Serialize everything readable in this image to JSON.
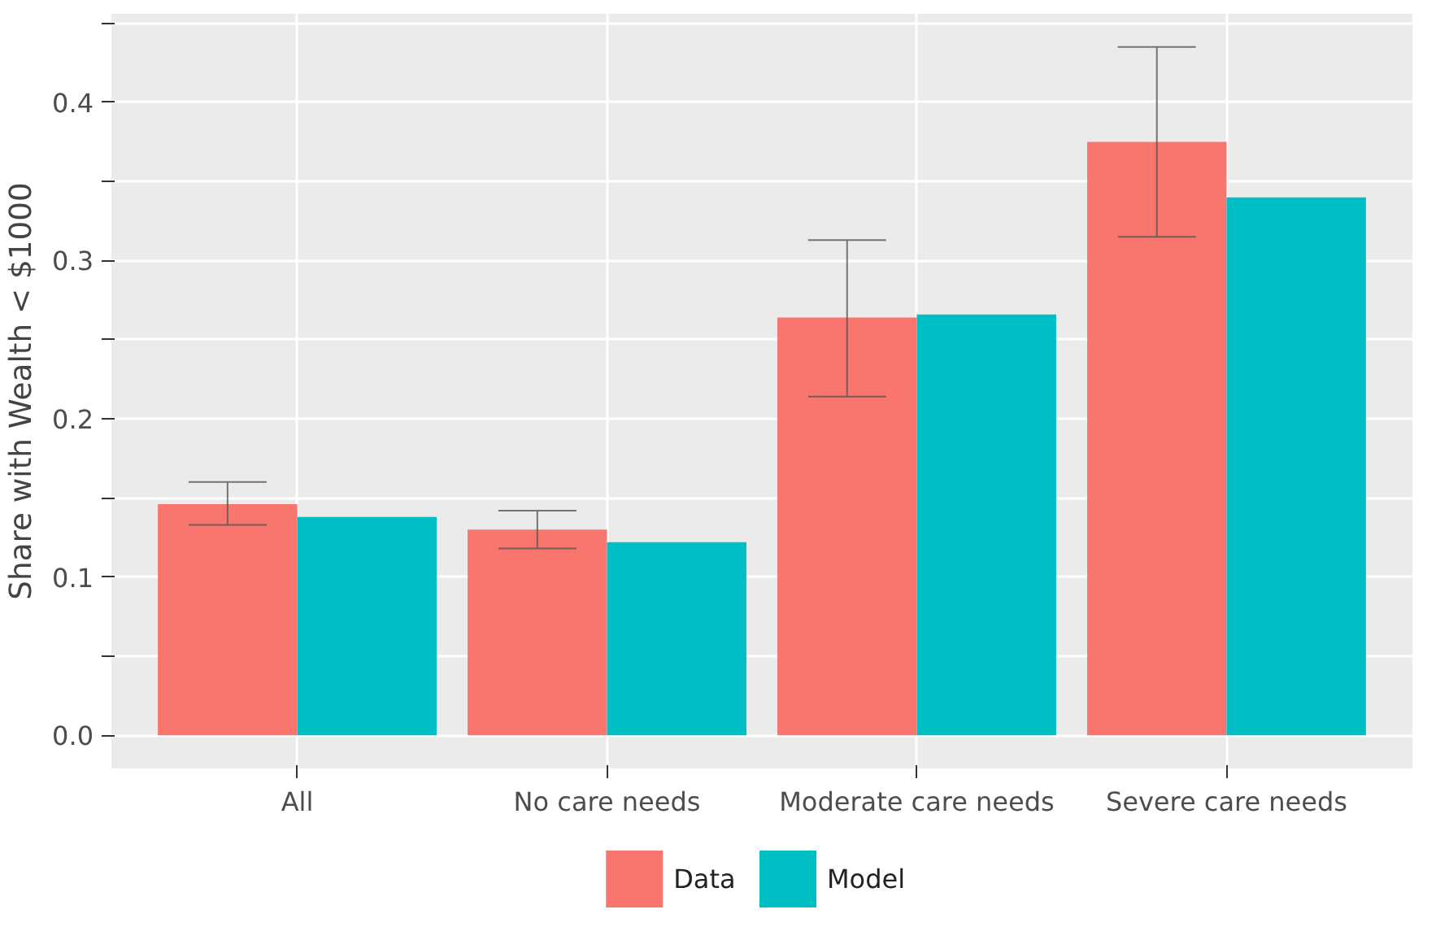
{
  "chart_data": {
    "type": "bar",
    "ylabel": "Share with Wealth < $1000",
    "categories": [
      "All",
      "No care needs",
      "Moderate care needs",
      "Severe care needs"
    ],
    "series": [
      {
        "name": "Data",
        "color": "#f8766d",
        "values": [
          0.146,
          0.13,
          0.264,
          0.375
        ],
        "errors": [
          [
            0.133,
            0.16
          ],
          [
            0.118,
            0.142
          ],
          [
            0.214,
            0.313
          ],
          [
            0.315,
            0.435
          ]
        ]
      },
      {
        "name": "Model",
        "color": "#00bfc4",
        "values": [
          0.138,
          0.122,
          0.266,
          0.34
        ]
      }
    ],
    "ylim": [
      -0.021,
      0.456
    ],
    "yticks": [
      {
        "value": 0,
        "label": "0.0"
      },
      {
        "value": 0.05,
        "label": null
      },
      0.1,
      {
        "value": 0.15,
        "label": null
      },
      0.2,
      {
        "value": 0.25,
        "label": null
      },
      0.3,
      {
        "value": 0.35,
        "label": null
      },
      0.4,
      {
        "value": 0.45,
        "label": null
      }
    ],
    "grid": true,
    "legend": "bottom"
  }
}
